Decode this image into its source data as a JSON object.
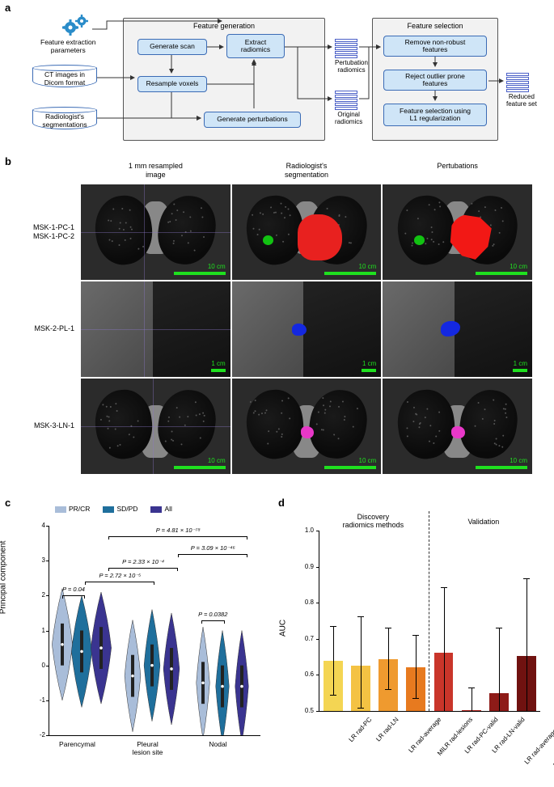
{
  "panel_labels": {
    "a": "a",
    "b": "b",
    "c": "c",
    "d": "d"
  },
  "panel_a": {
    "ext_labels": {
      "params": "Feature extraction\nparameters",
      "ct": "CT images in\nDicom format",
      "seg": "Radiologist's\nsegmentations"
    },
    "fg_title": "Feature generation",
    "fs_title": "Feature selection",
    "nodes": {
      "gen_scan": "Generate scan",
      "resample": "Resample voxels",
      "gen_pert": "Generate perturbations",
      "extract": "Extract\nradiomics",
      "fs1": "Remove non-robust\nfeatures",
      "fs2": "Reject outlier prone\nfeatures",
      "fs3": "Feature selection using\nL1 regularization"
    },
    "stacks": {
      "pert": "Pertubation\nradiomics",
      "orig": "Original\nradiomics",
      "reduced": "Reduced\nfeature set"
    }
  },
  "panel_b": {
    "col_headers": [
      "1 mm resampled\nimage",
      "Radiologist's\nsegmentation",
      "Pertubations"
    ],
    "row_labels": [
      "MSK-1-PC-1\nMSK-1-PC-2",
      "MSK-2-PL-1",
      "MSK-3-LN-1"
    ],
    "scalebar": "10 cm",
    "scalebar_small": "1 cm"
  },
  "panel_c": {
    "ylabel": "Principal component",
    "ylim": [
      -2,
      4
    ],
    "ytick_step": 1,
    "groups": [
      "Parencymal",
      "Pleural\nlesion site",
      "Nodal"
    ],
    "legend": [
      {
        "label": "PR/CR",
        "color": "#a9bdd9"
      },
      {
        "label": "SD/PD",
        "color": "#1f6f9c"
      },
      {
        "label": "All",
        "color": "#3a3490"
      }
    ],
    "pvals": [
      {
        "text": "P = 0.04",
        "span": "g0-prcr-sdpd"
      },
      {
        "text": "P = 2.72 × 10⁻⁵",
        "span": "g0-g1-sdpd"
      },
      {
        "text": "P = 2.33 × 10⁻⁴",
        "span": "g0-g1-all"
      },
      {
        "text": "P = 0.0382",
        "span": "g2-prcr-sdpd"
      },
      {
        "text": "P = 3.09 × 10⁻⁴⁶",
        "span": "g1-g2-all"
      },
      {
        "text": "P = 4.81 × 10⁻⁷⁸",
        "span": "g0-g2-all"
      }
    ],
    "violin_medians": {
      "g0": [
        0.6,
        0.4,
        0.5
      ],
      "g1": [
        -0.3,
        0.0,
        -0.1
      ],
      "g2": [
        -0.5,
        -0.6,
        -0.6
      ]
    }
  },
  "panel_d": {
    "ylabel": "AUC",
    "ylim": [
      0.5,
      1.0
    ],
    "ytick_step": 0.1,
    "sections": {
      "discovery": "Discovery\nradiomics methods",
      "validation": "Validation"
    },
    "bars": [
      {
        "label": "LR rad-PC",
        "auc": 0.638,
        "lo": 0.545,
        "hi": 0.735,
        "color": "#f4d553"
      },
      {
        "label": "LR rad-LN",
        "auc": 0.625,
        "lo": 0.508,
        "hi": 0.762,
        "color": "#f4c243"
      },
      {
        "label": "LR rad-average",
        "auc": 0.643,
        "lo": 0.56,
        "hi": 0.73,
        "color": "#ef9a2f"
      },
      {
        "label": "MILR rad-lesions",
        "auc": 0.62,
        "lo": 0.535,
        "hi": 0.71,
        "color": "#e77a1f"
      },
      {
        "label": "LR rad-PC-valid",
        "auc": 0.662,
        "lo": 0.5,
        "hi": 0.842,
        "color": "#c9352a"
      },
      {
        "label": "LR rad-LN-valid",
        "auc": 0.502,
        "lo": 0.5,
        "hi": 0.565,
        "color": "#b02821"
      },
      {
        "label": "LR rad-average-valid",
        "auc": 0.55,
        "lo": 0.5,
        "hi": 0.73,
        "color": "#8e1b18"
      },
      {
        "label": "MILR rad-lesions-valid",
        "auc": 0.652,
        "lo": 0.5,
        "hi": 0.868,
        "color": "#701210"
      }
    ]
  },
  "colors": {
    "node_fill": "#cfe5f7",
    "node_border": "#3b6bb5",
    "gear": "#2a8cc9"
  }
}
